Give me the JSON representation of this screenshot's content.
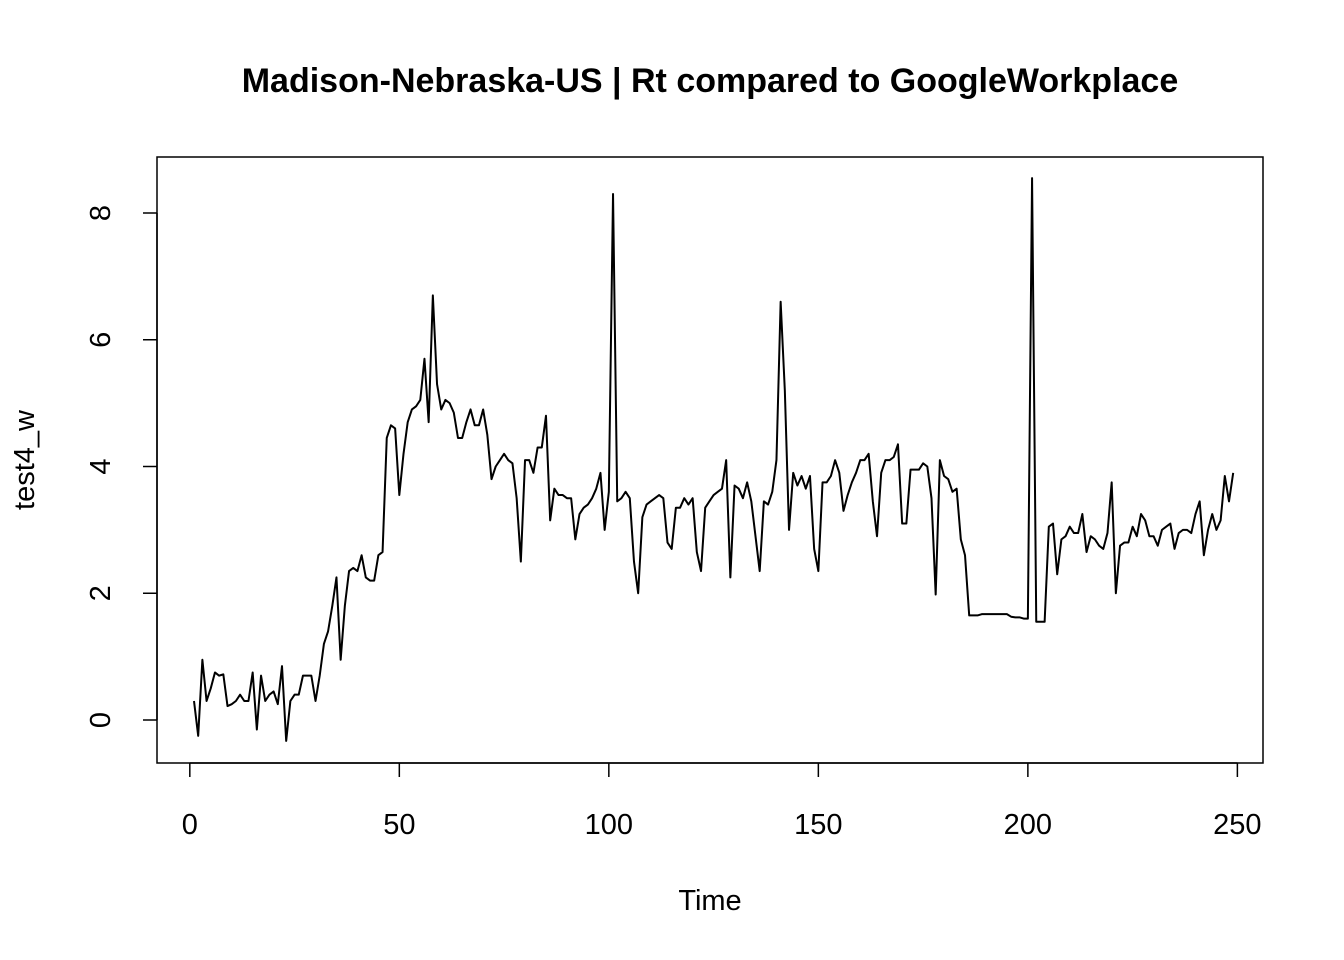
{
  "chart_data": {
    "type": "line",
    "title": "Madison-Nebraska-US | Rt compared to GoogleWorkplace",
    "xlabel": "Time",
    "ylabel": "test4_w",
    "xlim": [
      1,
      248
    ],
    "ylim": [
      -0.33,
      8.52
    ],
    "x_ticks": [
      0,
      50,
      100,
      150,
      200,
      250
    ],
    "y_ticks": [
      0,
      2,
      4,
      6,
      8
    ],
    "grid": false,
    "legend": "none",
    "series": [
      {
        "x_start": 1,
        "values": [
          0.3,
          -0.25,
          0.95,
          0.3,
          0.5,
          0.75,
          0.7,
          0.72,
          0.22,
          0.25,
          0.3,
          0.4,
          0.3,
          0.3,
          0.75,
          -0.15,
          0.7,
          0.3,
          0.4,
          0.45,
          0.25,
          0.85,
          -0.33,
          0.3,
          0.4,
          0.4,
          0.7,
          0.7,
          0.7,
          0.3,
          0.7,
          1.2,
          1.4,
          1.8,
          2.25,
          0.95,
          1.8,
          2.35,
          2.4,
          2.35,
          2.6,
          2.25,
          2.2,
          2.2,
          2.6,
          2.65,
          4.45,
          4.65,
          4.6,
          3.55,
          4.2,
          4.7,
          4.9,
          4.95,
          5.05,
          5.7,
          4.7,
          6.7,
          5.3,
          4.9,
          5.05,
          5.0,
          4.85,
          4.45,
          4.45,
          4.7,
          4.9,
          4.65,
          4.65,
          4.9,
          4.5,
          3.8,
          4.0,
          4.1,
          4.2,
          4.1,
          4.05,
          3.5,
          2.5,
          4.1,
          4.1,
          3.9,
          4.3,
          4.3,
          4.8,
          3.15,
          3.65,
          3.55,
          3.55,
          3.5,
          3.5,
          2.85,
          3.25,
          3.35,
          3.4,
          3.5,
          3.65,
          3.9,
          3.0,
          3.6,
          8.3,
          3.45,
          3.5,
          3.6,
          3.5,
          2.5,
          2.0,
          3.2,
          3.4,
          3.45,
          3.5,
          3.55,
          3.5,
          2.8,
          2.7,
          3.35,
          3.35,
          3.5,
          3.4,
          3.5,
          2.65,
          2.35,
          3.35,
          3.45,
          3.55,
          3.6,
          3.65,
          4.1,
          2.25,
          3.7,
          3.65,
          3.5,
          3.75,
          3.45,
          2.9,
          2.35,
          3.45,
          3.4,
          3.6,
          4.1,
          6.6,
          5.2,
          3.0,
          3.9,
          3.7,
          3.85,
          3.65,
          3.85,
          2.7,
          2.35,
          3.75,
          3.75,
          3.85,
          4.1,
          3.9,
          3.3,
          3.55,
          3.75,
          3.9,
          4.1,
          4.1,
          4.2,
          3.45,
          2.9,
          3.9,
          4.1,
          4.1,
          4.15,
          4.35,
          3.1,
          3.1,
          3.95,
          3.95,
          3.95,
          4.05,
          4.0,
          3.5,
          1.98,
          4.1,
          3.85,
          3.8,
          3.6,
          3.65,
          2.85,
          2.6,
          1.65,
          1.65,
          1.65,
          1.67,
          1.67,
          1.67,
          1.67,
          1.67,
          1.67,
          1.67,
          1.63,
          1.62,
          1.62,
          1.6,
          1.6,
          8.55,
          1.55,
          1.55,
          1.55,
          3.05,
          3.1,
          2.3,
          2.85,
          2.9,
          3.05,
          2.95,
          2.95,
          3.25,
          2.65,
          2.9,
          2.85,
          2.75,
          2.7,
          2.95,
          3.75,
          2.0,
          2.75,
          2.8,
          2.8,
          3.05,
          2.9,
          3.25,
          3.15,
          2.9,
          2.9,
          2.75,
          3.0,
          3.05,
          3.1,
          2.7,
          2.95,
          3.0,
          3.0,
          2.95,
          3.25,
          3.45,
          2.6,
          3.0,
          3.25,
          3.0,
          3.15,
          3.85,
          3.45,
          3.9
        ]
      }
    ]
  }
}
